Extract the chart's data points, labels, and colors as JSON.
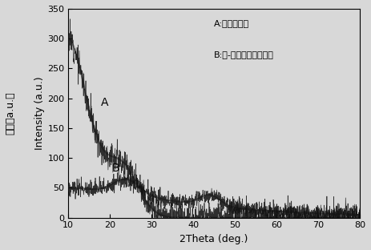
{
  "xlim": [
    10,
    80
  ],
  "ylim": [
    0,
    350
  ],
  "xticks": [
    10,
    20,
    30,
    40,
    50,
    60,
    70,
    80
  ],
  "yticks": [
    0,
    50,
    100,
    150,
    200,
    250,
    300,
    350
  ],
  "xlabel": "2Theta (deg.)",
  "ylabel": "Intensity (a.u.)",
  "ylabel_cn": "强度（a.u.）",
  "annotation_A": "A",
  "annotation_B": "B",
  "legend_line1": "A:活性碳毛屐",
  "legend_line2": "B:硫-活性炭毛屐复合物",
  "bg_color": "#d8d8d8",
  "line_color": "#111111",
  "noise_amplitude_A": 12,
  "noise_amplitude_B": 7,
  "figsize": [
    4.63,
    3.12
  ],
  "dpi": 100
}
